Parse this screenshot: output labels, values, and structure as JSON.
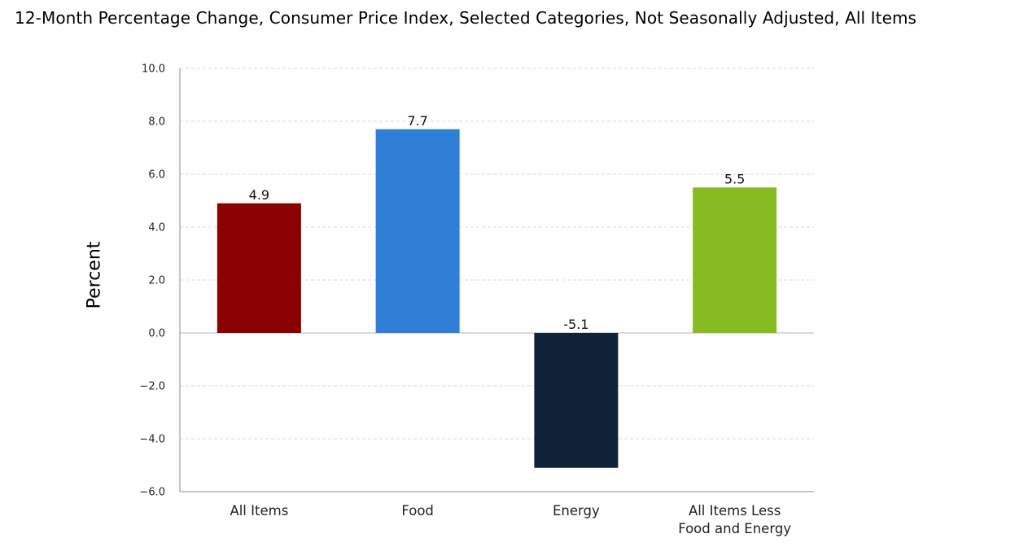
{
  "chart_data": {
    "type": "bar",
    "title": "12-Month Percentage Change, Consumer Price Index, Selected Categories, Not Seasonally Adjusted, All Items",
    "xlabel": "",
    "ylabel": "Percent",
    "ylim": [
      -6,
      10
    ],
    "yticks": [
      10,
      8,
      6,
      4,
      2,
      0,
      -2,
      -4,
      -6
    ],
    "ytick_labels": [
      "10.0",
      "8.0",
      "6.0",
      "4.0",
      "2.0",
      "0.0",
      "−2.0",
      "−4.0",
      "−6.0"
    ],
    "grid": true,
    "legend": "none",
    "categories": [
      [
        "All Items"
      ],
      [
        "Food"
      ],
      [
        "Energy"
      ],
      [
        "All Items Less",
        "Food and Energy"
      ]
    ],
    "values": [
      4.9,
      7.7,
      -5.1,
      5.5
    ],
    "data_labels": [
      "4.9",
      "7.7",
      "-5.1",
      "5.5"
    ],
    "colors": [
      "#8b0000",
      "#2f7fd7",
      "#0f2238",
      "#86bb22"
    ]
  }
}
